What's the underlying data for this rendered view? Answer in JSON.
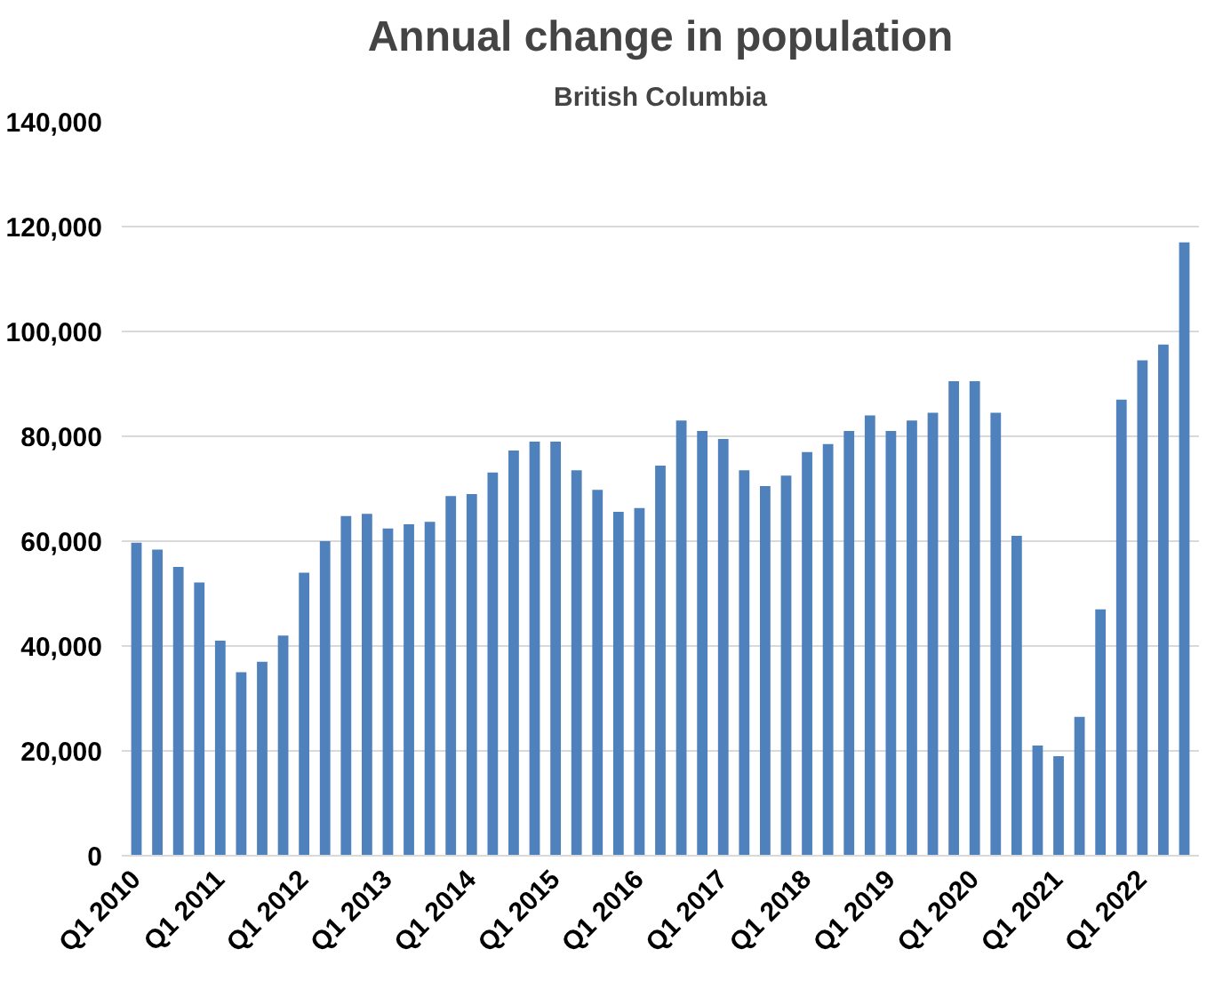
{
  "chart_data": {
    "type": "bar",
    "title": "Annual change in population",
    "subtitle": "British Columbia",
    "categories": [
      "Q1 2010",
      null,
      null,
      null,
      "Q1 2011",
      null,
      null,
      null,
      "Q1 2012",
      null,
      null,
      null,
      "Q1 2013",
      null,
      null,
      null,
      "Q1 2014",
      null,
      null,
      null,
      "Q1 2015",
      null,
      null,
      null,
      "Q1 2016",
      null,
      null,
      null,
      "Q1 2017",
      null,
      null,
      null,
      "Q1 2018",
      null,
      null,
      null,
      "Q1 2019",
      null,
      null,
      null,
      "Q1 2020",
      null,
      null,
      null,
      "Q1 2021",
      null,
      null,
      null,
      "Q1 2022",
      null,
      null
    ],
    "values": [
      59700,
      58400,
      55100,
      52100,
      41000,
      35000,
      37000,
      42000,
      54000,
      60000,
      64800,
      65200,
      62400,
      63200,
      63700,
      68600,
      69000,
      73100,
      77300,
      79000,
      79000,
      73500,
      69800,
      65600,
      66300,
      74400,
      83000,
      81000,
      79500,
      73500,
      70500,
      72500,
      77000,
      78500,
      81000,
      84000,
      81000,
      83000,
      84500,
      90500,
      90500,
      84500,
      61000,
      21000,
      19000,
      26500,
      47000,
      87000,
      94500,
      97500,
      117000
    ],
    "color": "#4f81bd",
    "ylim": [
      0,
      140000
    ],
    "yticks": [
      0,
      {
        "value": 20000,
        "label": "20,000"
      },
      {
        "value": 40000,
        "label": "40,000"
      },
      {
        "value": 60000,
        "label": "60,000"
      },
      {
        "value": 80000,
        "label": "80,000"
      },
      {
        "value": 100000,
        "label": "100,000"
      },
      {
        "value": 120000,
        "label": "120,000"
      },
      {
        "value": 140000,
        "label": "140,000"
      }
    ],
    "grid": "y"
  }
}
